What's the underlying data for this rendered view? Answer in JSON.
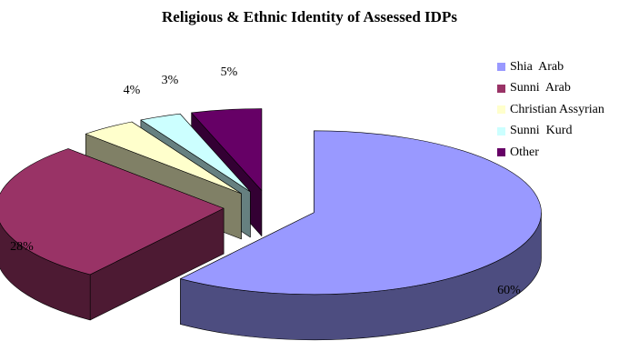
{
  "chart_data": {
    "type": "pie",
    "title": "Religious & Ethnic Identity of Assessed IDPs",
    "style": "3d-exploded",
    "legend_position": "right",
    "slices": [
      {
        "label": "Shia  Arab",
        "value": 60,
        "display": "60%",
        "color": "#9999ff",
        "side_color": "#4d4d80"
      },
      {
        "label": "Sunni  Arab",
        "value": 28,
        "display": "28%",
        "color": "#993366",
        "side_color": "#4d1a33"
      },
      {
        "label": "Christian Assyrian",
        "value": 4,
        "display": "4%",
        "color": "#ffffcc",
        "side_color": "#808066"
      },
      {
        "label": "Sunni  Kurd",
        "value": 3,
        "display": "3%",
        "color": "#ccffff",
        "side_color": "#668080"
      },
      {
        "label": "Other",
        "value": 5,
        "display": "5%",
        "color": "#660066",
        "side_color": "#330033"
      }
    ]
  }
}
